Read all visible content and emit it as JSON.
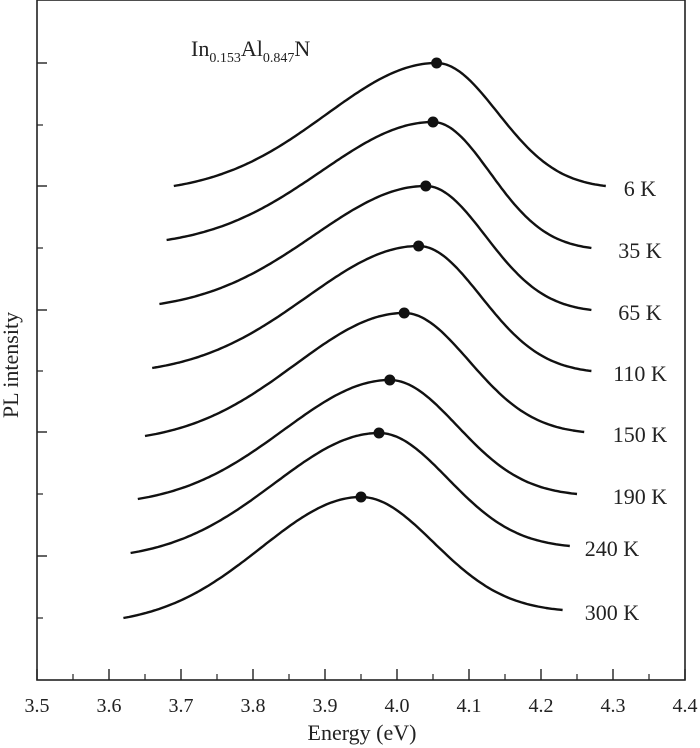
{
  "chart_data": {
    "type": "line",
    "title": "",
    "annotation": {
      "base1": "In",
      "sub1": "0.153",
      "base2": "Al",
      "sub2": "0.847",
      "base3": "N"
    },
    "xlabel": "Energy (eV)",
    "ylabel": "PL intensity",
    "xlim": [
      3.5,
      4.4
    ],
    "x_ticks": [
      "3.5",
      "3.6",
      "3.7",
      "3.8",
      "3.9",
      "4.0",
      "4.1",
      "4.2",
      "4.3",
      "4.4"
    ],
    "y_ticks_labeled": false,
    "y_scale": "arbitrary units, curves vertically offset",
    "series": [
      {
        "name": "6 K",
        "range": [
          3.69,
          4.29
        ],
        "peak_x": 4.055
      },
      {
        "name": "35 K",
        "range": [
          3.68,
          4.27
        ],
        "peak_x": 4.05
      },
      {
        "name": "65 K",
        "range": [
          3.67,
          4.27
        ],
        "peak_x": 4.04
      },
      {
        "name": "110 K",
        "range": [
          3.66,
          4.27
        ],
        "peak_x": 4.03
      },
      {
        "name": "150 K",
        "range": [
          3.65,
          4.26
        ],
        "peak_x": 4.01
      },
      {
        "name": "190 K",
        "range": [
          3.64,
          4.25
        ],
        "peak_x": 3.99
      },
      {
        "name": "240 K",
        "range": [
          3.63,
          4.24
        ],
        "peak_x": 3.975
      },
      {
        "name": "300 K",
        "range": [
          3.62,
          4.23
        ],
        "peak_x": 3.95
      }
    ],
    "peak_markers": "filled black circles at the peak of each curve",
    "grid": false,
    "legend": "labels at the right end of each curve"
  }
}
